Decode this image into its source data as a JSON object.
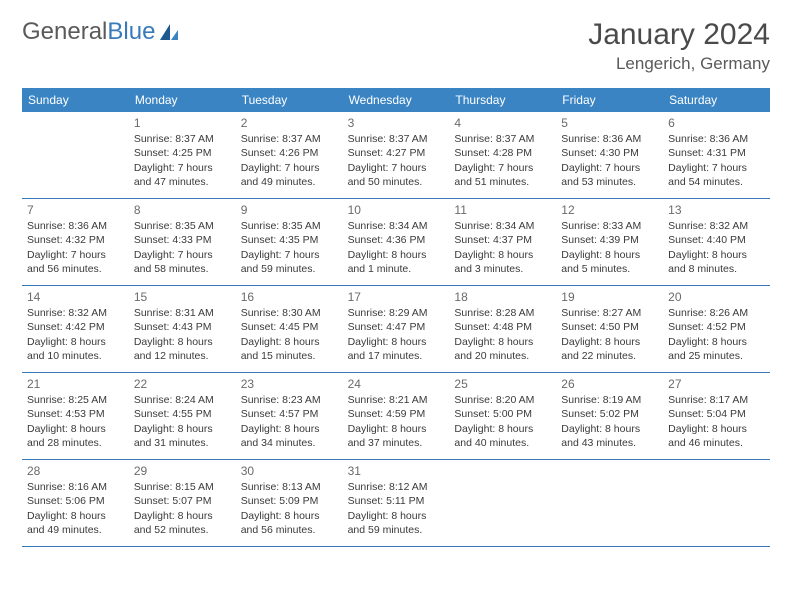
{
  "logo": {
    "text1": "General",
    "text2": "Blue"
  },
  "title": "January 2024",
  "location": "Lengerich, Germany",
  "colors": {
    "header_bg": "#3a84c4",
    "header_text": "#ffffff",
    "rule": "#3a7ab8",
    "text": "#3a3a3a",
    "daynum": "#6a6a6a",
    "logo_gray": "#5a5a5a",
    "logo_blue": "#3a7ab8",
    "background": "#ffffff"
  },
  "typography": {
    "title_fontsize": 30,
    "location_fontsize": 17,
    "dayheader_fontsize": 12,
    "daynum_fontsize": 12,
    "body_fontsize": 10.5,
    "logo_fontsize": 24
  },
  "layout": {
    "columns": 7,
    "rows": 5,
    "cell_min_height": 86
  },
  "day_names": [
    "Sunday",
    "Monday",
    "Tuesday",
    "Wednesday",
    "Thursday",
    "Friday",
    "Saturday"
  ],
  "weeks": [
    [
      {
        "n": "",
        "sun": "",
        "set": "",
        "dl1": "",
        "dl2": "",
        "empty": true
      },
      {
        "n": "1",
        "sun": "Sunrise: 8:37 AM",
        "set": "Sunset: 4:25 PM",
        "dl1": "Daylight: 7 hours",
        "dl2": "and 47 minutes."
      },
      {
        "n": "2",
        "sun": "Sunrise: 8:37 AM",
        "set": "Sunset: 4:26 PM",
        "dl1": "Daylight: 7 hours",
        "dl2": "and 49 minutes."
      },
      {
        "n": "3",
        "sun": "Sunrise: 8:37 AM",
        "set": "Sunset: 4:27 PM",
        "dl1": "Daylight: 7 hours",
        "dl2": "and 50 minutes."
      },
      {
        "n": "4",
        "sun": "Sunrise: 8:37 AM",
        "set": "Sunset: 4:28 PM",
        "dl1": "Daylight: 7 hours",
        "dl2": "and 51 minutes."
      },
      {
        "n": "5",
        "sun": "Sunrise: 8:36 AM",
        "set": "Sunset: 4:30 PM",
        "dl1": "Daylight: 7 hours",
        "dl2": "and 53 minutes."
      },
      {
        "n": "6",
        "sun": "Sunrise: 8:36 AM",
        "set": "Sunset: 4:31 PM",
        "dl1": "Daylight: 7 hours",
        "dl2": "and 54 minutes."
      }
    ],
    [
      {
        "n": "7",
        "sun": "Sunrise: 8:36 AM",
        "set": "Sunset: 4:32 PM",
        "dl1": "Daylight: 7 hours",
        "dl2": "and 56 minutes."
      },
      {
        "n": "8",
        "sun": "Sunrise: 8:35 AM",
        "set": "Sunset: 4:33 PM",
        "dl1": "Daylight: 7 hours",
        "dl2": "and 58 minutes."
      },
      {
        "n": "9",
        "sun": "Sunrise: 8:35 AM",
        "set": "Sunset: 4:35 PM",
        "dl1": "Daylight: 7 hours",
        "dl2": "and 59 minutes."
      },
      {
        "n": "10",
        "sun": "Sunrise: 8:34 AM",
        "set": "Sunset: 4:36 PM",
        "dl1": "Daylight: 8 hours",
        "dl2": "and 1 minute."
      },
      {
        "n": "11",
        "sun": "Sunrise: 8:34 AM",
        "set": "Sunset: 4:37 PM",
        "dl1": "Daylight: 8 hours",
        "dl2": "and 3 minutes."
      },
      {
        "n": "12",
        "sun": "Sunrise: 8:33 AM",
        "set": "Sunset: 4:39 PM",
        "dl1": "Daylight: 8 hours",
        "dl2": "and 5 minutes."
      },
      {
        "n": "13",
        "sun": "Sunrise: 8:32 AM",
        "set": "Sunset: 4:40 PM",
        "dl1": "Daylight: 8 hours",
        "dl2": "and 8 minutes."
      }
    ],
    [
      {
        "n": "14",
        "sun": "Sunrise: 8:32 AM",
        "set": "Sunset: 4:42 PM",
        "dl1": "Daylight: 8 hours",
        "dl2": "and 10 minutes."
      },
      {
        "n": "15",
        "sun": "Sunrise: 8:31 AM",
        "set": "Sunset: 4:43 PM",
        "dl1": "Daylight: 8 hours",
        "dl2": "and 12 minutes."
      },
      {
        "n": "16",
        "sun": "Sunrise: 8:30 AM",
        "set": "Sunset: 4:45 PM",
        "dl1": "Daylight: 8 hours",
        "dl2": "and 15 minutes."
      },
      {
        "n": "17",
        "sun": "Sunrise: 8:29 AM",
        "set": "Sunset: 4:47 PM",
        "dl1": "Daylight: 8 hours",
        "dl2": "and 17 minutes."
      },
      {
        "n": "18",
        "sun": "Sunrise: 8:28 AM",
        "set": "Sunset: 4:48 PM",
        "dl1": "Daylight: 8 hours",
        "dl2": "and 20 minutes."
      },
      {
        "n": "19",
        "sun": "Sunrise: 8:27 AM",
        "set": "Sunset: 4:50 PM",
        "dl1": "Daylight: 8 hours",
        "dl2": "and 22 minutes."
      },
      {
        "n": "20",
        "sun": "Sunrise: 8:26 AM",
        "set": "Sunset: 4:52 PM",
        "dl1": "Daylight: 8 hours",
        "dl2": "and 25 minutes."
      }
    ],
    [
      {
        "n": "21",
        "sun": "Sunrise: 8:25 AM",
        "set": "Sunset: 4:53 PM",
        "dl1": "Daylight: 8 hours",
        "dl2": "and 28 minutes."
      },
      {
        "n": "22",
        "sun": "Sunrise: 8:24 AM",
        "set": "Sunset: 4:55 PM",
        "dl1": "Daylight: 8 hours",
        "dl2": "and 31 minutes."
      },
      {
        "n": "23",
        "sun": "Sunrise: 8:23 AM",
        "set": "Sunset: 4:57 PM",
        "dl1": "Daylight: 8 hours",
        "dl2": "and 34 minutes."
      },
      {
        "n": "24",
        "sun": "Sunrise: 8:21 AM",
        "set": "Sunset: 4:59 PM",
        "dl1": "Daylight: 8 hours",
        "dl2": "and 37 minutes."
      },
      {
        "n": "25",
        "sun": "Sunrise: 8:20 AM",
        "set": "Sunset: 5:00 PM",
        "dl1": "Daylight: 8 hours",
        "dl2": "and 40 minutes."
      },
      {
        "n": "26",
        "sun": "Sunrise: 8:19 AM",
        "set": "Sunset: 5:02 PM",
        "dl1": "Daylight: 8 hours",
        "dl2": "and 43 minutes."
      },
      {
        "n": "27",
        "sun": "Sunrise: 8:17 AM",
        "set": "Sunset: 5:04 PM",
        "dl1": "Daylight: 8 hours",
        "dl2": "and 46 minutes."
      }
    ],
    [
      {
        "n": "28",
        "sun": "Sunrise: 8:16 AM",
        "set": "Sunset: 5:06 PM",
        "dl1": "Daylight: 8 hours",
        "dl2": "and 49 minutes."
      },
      {
        "n": "29",
        "sun": "Sunrise: 8:15 AM",
        "set": "Sunset: 5:07 PM",
        "dl1": "Daylight: 8 hours",
        "dl2": "and 52 minutes."
      },
      {
        "n": "30",
        "sun": "Sunrise: 8:13 AM",
        "set": "Sunset: 5:09 PM",
        "dl1": "Daylight: 8 hours",
        "dl2": "and 56 minutes."
      },
      {
        "n": "31",
        "sun": "Sunrise: 8:12 AM",
        "set": "Sunset: 5:11 PM",
        "dl1": "Daylight: 8 hours",
        "dl2": "and 59 minutes."
      },
      {
        "n": "",
        "sun": "",
        "set": "",
        "dl1": "",
        "dl2": "",
        "empty": true
      },
      {
        "n": "",
        "sun": "",
        "set": "",
        "dl1": "",
        "dl2": "",
        "empty": true
      },
      {
        "n": "",
        "sun": "",
        "set": "",
        "dl1": "",
        "dl2": "",
        "empty": true
      }
    ]
  ]
}
